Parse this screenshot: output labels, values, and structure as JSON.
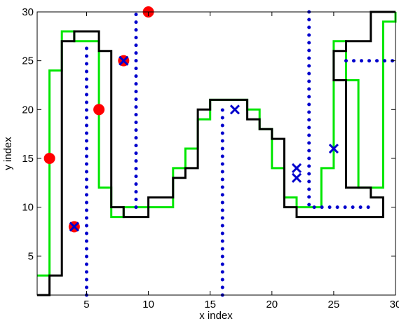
{
  "chart_data": {
    "type": "line",
    "title": "",
    "xlabel": "x index",
    "ylabel": "y index",
    "xlim": [
      1,
      30
    ],
    "ylim": [
      1,
      30
    ],
    "xticks": [
      5,
      10,
      15,
      20,
      25,
      30
    ],
    "yticks": [
      5,
      10,
      15,
      20,
      25,
      30
    ],
    "grid": false,
    "legend": "none",
    "colors": {
      "black_step": "#000000",
      "green_step": "#00e600",
      "dotted": "#0000cc",
      "circle": "#ff0000",
      "cross": "#0000cc"
    },
    "series": [
      {
        "kind": "step",
        "color_key": "green_step",
        "points": [
          [
            1,
            3
          ],
          [
            2,
            3
          ],
          [
            2,
            24
          ],
          [
            3,
            24
          ],
          [
            3,
            28
          ],
          [
            4,
            28
          ],
          [
            4,
            27
          ],
          [
            6,
            27
          ],
          [
            6,
            12
          ],
          [
            7,
            12
          ],
          [
            7,
            9
          ],
          [
            8,
            9
          ],
          [
            8,
            10
          ],
          [
            12,
            10
          ],
          [
            12,
            14
          ],
          [
            13,
            14
          ],
          [
            13,
            16
          ],
          [
            14,
            16
          ],
          [
            14,
            19
          ],
          [
            15,
            19
          ],
          [
            15,
            21
          ],
          [
            18,
            21
          ],
          [
            18,
            20
          ],
          [
            19,
            20
          ],
          [
            19,
            18
          ],
          [
            20,
            18
          ],
          [
            20,
            14
          ],
          [
            21,
            14
          ],
          [
            21,
            11
          ],
          [
            22,
            11
          ],
          [
            22,
            10
          ],
          [
            24,
            10
          ],
          [
            24,
            14
          ],
          [
            25,
            14
          ],
          [
            25,
            27
          ],
          [
            26,
            27
          ],
          [
            26,
            23
          ],
          [
            27,
            23
          ],
          [
            27,
            12
          ],
          [
            29,
            12
          ],
          [
            29,
            29
          ],
          [
            30,
            29
          ],
          [
            30,
            30
          ]
        ]
      },
      {
        "kind": "step",
        "color_key": "black_step",
        "points": [
          [
            1,
            1
          ],
          [
            2,
            1
          ],
          [
            2,
            3
          ],
          [
            3,
            3
          ],
          [
            3,
            27
          ],
          [
            4,
            27
          ],
          [
            4,
            28
          ],
          [
            6,
            28
          ],
          [
            6,
            26
          ],
          [
            7,
            26
          ],
          [
            7,
            10
          ],
          [
            8,
            10
          ],
          [
            8,
            9
          ],
          [
            10,
            9
          ],
          [
            10,
            11
          ],
          [
            12,
            11
          ],
          [
            12,
            13
          ],
          [
            13,
            13
          ],
          [
            13,
            14
          ],
          [
            14,
            14
          ],
          [
            14,
            20
          ],
          [
            15,
            20
          ],
          [
            15,
            21
          ],
          [
            18,
            21
          ],
          [
            18,
            19
          ],
          [
            19,
            19
          ],
          [
            19,
            18
          ],
          [
            20,
            18
          ],
          [
            20,
            17
          ],
          [
            21,
            17
          ],
          [
            21,
            10
          ],
          [
            22,
            10
          ],
          [
            22,
            9
          ],
          [
            29,
            9
          ],
          [
            29,
            11
          ],
          [
            28,
            11
          ],
          [
            28,
            12
          ],
          [
            26,
            12
          ],
          [
            26,
            23
          ],
          [
            25,
            23
          ],
          [
            25,
            26
          ],
          [
            26,
            26
          ],
          [
            26,
            27
          ],
          [
            28,
            27
          ],
          [
            28,
            30
          ],
          [
            30,
            30
          ]
        ]
      },
      {
        "kind": "dotted",
        "color_key": "dotted",
        "points": [
          [
            5,
            1
          ],
          [
            5,
            27
          ]
        ]
      },
      {
        "kind": "dotted",
        "color_key": "dotted",
        "points": [
          [
            9,
            10
          ],
          [
            9,
            30
          ]
        ]
      },
      {
        "kind": "dotted",
        "color_key": "dotted",
        "points": [
          [
            16,
            1
          ],
          [
            16,
            20
          ]
        ]
      },
      {
        "kind": "dotted",
        "color_key": "dotted",
        "points": [
          [
            23,
            30
          ],
          [
            23,
            10
          ],
          [
            28,
            10
          ]
        ]
      },
      {
        "kind": "dotted",
        "color_key": "dotted",
        "points": [
          [
            26,
            25
          ],
          [
            30,
            25
          ]
        ]
      },
      {
        "kind": "markers",
        "marker": "circle",
        "color_key": "circle",
        "points": [
          [
            2,
            15
          ],
          [
            4,
            8
          ],
          [
            6,
            20
          ],
          [
            8,
            25
          ],
          [
            10,
            30
          ]
        ]
      },
      {
        "kind": "markers",
        "marker": "cross",
        "color_key": "cross",
        "points": [
          [
            4,
            8
          ],
          [
            8,
            25
          ],
          [
            17,
            20
          ],
          [
            22,
            14
          ],
          [
            22,
            13
          ],
          [
            25,
            16
          ]
        ]
      }
    ]
  }
}
